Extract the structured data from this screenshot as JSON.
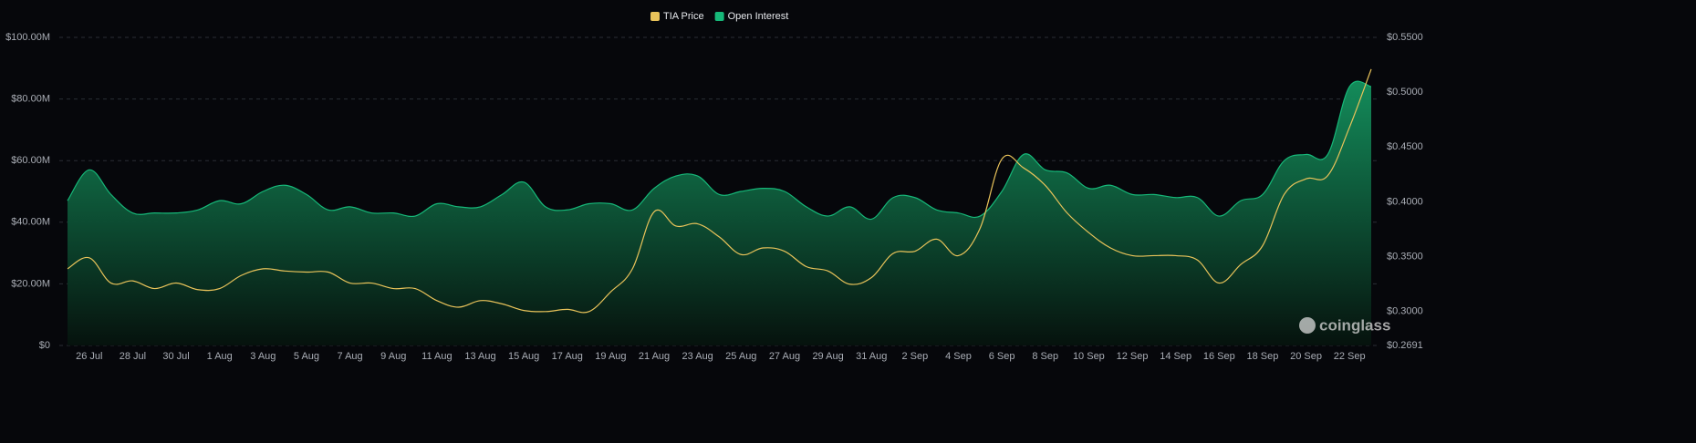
{
  "chart_data": {
    "type": "area-line",
    "categories": [
      null,
      "26 Jul",
      null,
      "28 Jul",
      null,
      "30 Jul",
      null,
      "1 Aug",
      null,
      "3 Aug",
      null,
      "5 Aug",
      null,
      "7 Aug",
      null,
      "9 Aug",
      null,
      "11 Aug",
      null,
      "13 Aug",
      null,
      "15 Aug",
      null,
      "17 Aug",
      null,
      "19 Aug",
      null,
      "21 Aug",
      null,
      "23 Aug",
      null,
      "25 Aug",
      null,
      "27 Aug",
      null,
      "29 Aug",
      null,
      "31 Aug",
      null,
      "2 Sep",
      null,
      "4 Sep",
      null,
      "6 Sep",
      null,
      "8 Sep",
      null,
      "10 Sep",
      null,
      "12 Sep",
      null,
      "14 Sep",
      null,
      "16 Sep",
      null,
      "18 Sep",
      null,
      "20 Sep",
      null,
      "22 Sep",
      null
    ],
    "series": [
      {
        "name": "TIA Price",
        "color": "#e9c35a",
        "axis": "y2",
        "values": [
          0.339,
          0.349,
          0.326,
          0.328,
          0.321,
          0.326,
          0.32,
          0.321,
          0.333,
          0.339,
          0.337,
          0.336,
          0.336,
          0.326,
          0.326,
          0.321,
          0.321,
          0.31,
          0.304,
          0.31,
          0.307,
          0.301,
          0.3,
          0.302,
          0.3,
          0.318,
          0.339,
          0.391,
          0.378,
          0.38,
          0.368,
          0.352,
          0.358,
          0.355,
          0.341,
          0.337,
          0.325,
          0.331,
          0.353,
          0.355,
          0.366,
          0.351,
          0.376,
          0.439,
          0.431,
          0.415,
          0.39,
          0.372,
          0.358,
          0.351,
          0.351,
          0.351,
          0.347,
          0.326,
          0.343,
          0.36,
          0.407,
          0.421,
          0.424,
          0.468,
          0.521
        ]
      },
      {
        "name": "Open Interest",
        "color": "#16b879",
        "values": [
          47000000,
          57000000,
          49000000,
          43000000,
          43000000,
          43000000,
          44000000,
          47000000,
          46000000,
          50000000,
          52000000,
          49000000,
          44000000,
          45000000,
          43000000,
          43000000,
          42000000,
          46000000,
          45000000,
          45000000,
          49000000,
          53000000,
          45000000,
          44000000,
          46000000,
          46000000,
          44000000,
          51000000,
          55000000,
          55000000,
          49000000,
          50000000,
          51000000,
          50000000,
          45000000,
          42000000,
          45000000,
          41000000,
          48000000,
          48000000,
          44000000,
          43000000,
          42000000,
          50000000,
          62000000,
          57000000,
          56000000,
          51000000,
          52000000,
          49000000,
          49000000,
          48000000,
          48000000,
          42000000,
          47000000,
          49000000,
          60000000,
          62000000,
          62000000,
          84000000,
          84000000
        ]
      }
    ],
    "ylim": [
      0,
      100000000
    ],
    "yticks": [
      {
        "value": 0,
        "label": "$0"
      },
      {
        "value": 20000000,
        "label": "$20.00M"
      },
      {
        "value": 40000000,
        "label": "$40.00M"
      },
      {
        "value": 60000000,
        "label": "$60.00M"
      },
      {
        "value": 80000000,
        "label": "$80.00M"
      },
      {
        "value": 100000000,
        "label": "$100.00M"
      }
    ],
    "y2lim": [
      0.2691,
      0.55
    ],
    "y2ticks": [
      {
        "value": 0.2691,
        "label": "$0.2691"
      },
      {
        "value": 0.3,
        "label": "$0.3000"
      },
      {
        "value": 0.35,
        "label": "$0.3500"
      },
      {
        "value": 0.4,
        "label": "$0.4000"
      },
      {
        "value": 0.45,
        "label": "$0.4500"
      },
      {
        "value": 0.5,
        "label": "$0.5000"
      },
      {
        "value": 0.55,
        "label": "$0.5500"
      }
    ],
    "grid": true,
    "legend": "top",
    "watermark": "coinglass"
  }
}
